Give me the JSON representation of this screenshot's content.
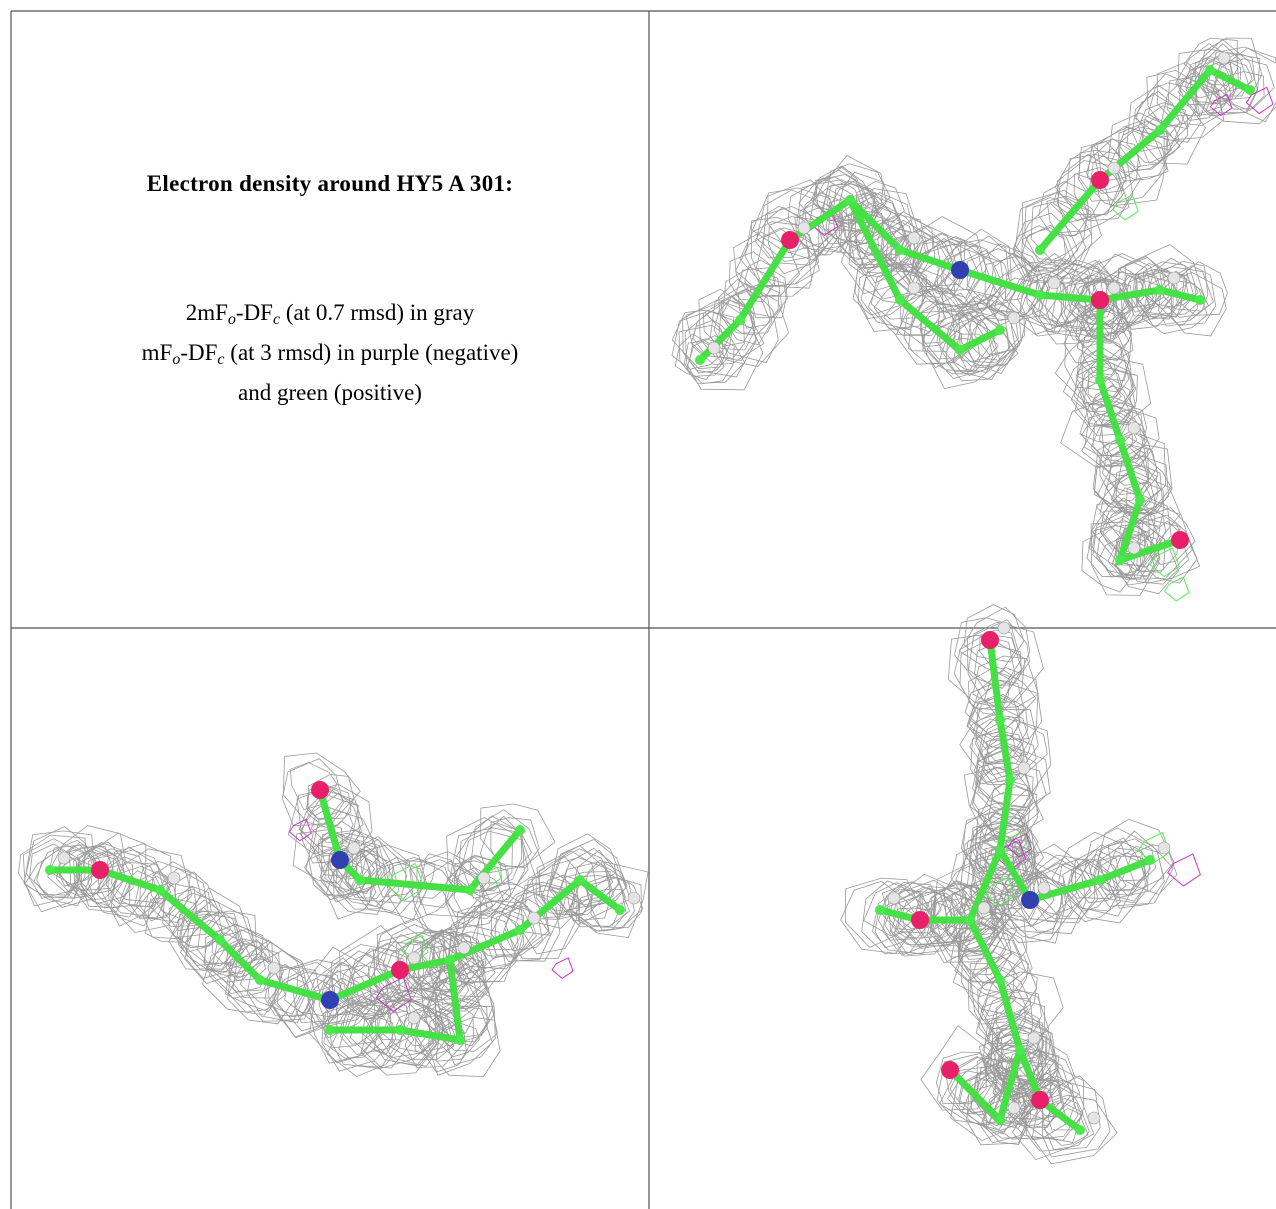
{
  "header": {
    "title": "Electron density around HY5 A 301:"
  },
  "legend": [
    [
      "2mF",
      "o",
      "-DF",
      "c",
      " (at 0.7 rmsd) in gray"
    ],
    [
      "mF",
      "o",
      "-DF",
      "c",
      " (at 3 rmsd) in purple (negative)"
    ],
    [
      "and green (positive)"
    ]
  ]
}
